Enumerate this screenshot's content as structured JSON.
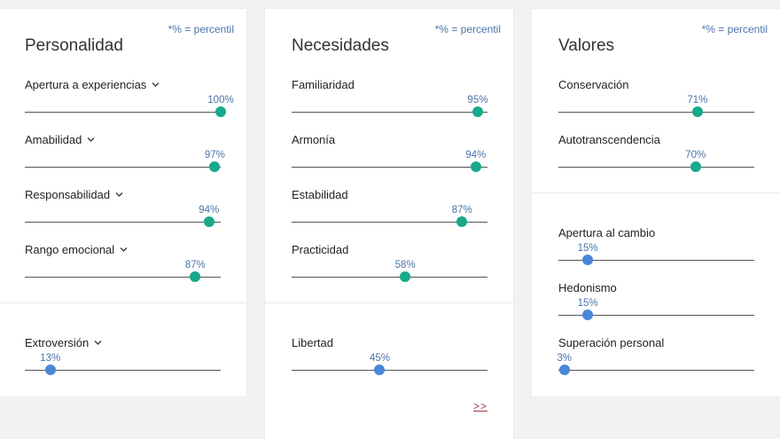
{
  "note": "*% = percentil",
  "colors": {
    "high": "#17a98b",
    "low": "#4a86d8",
    "value_text": "#4a73a8"
  },
  "cards": [
    {
      "title": "Personalidad",
      "note": "*% = percentil",
      "top_traits": [
        {
          "name": "Apertura a experiencias",
          "percent": 100,
          "label": "100%",
          "expandable": true
        },
        {
          "name": "Amabilidad",
          "percent": 97,
          "label": "97%",
          "expandable": true
        },
        {
          "name": "Responsabilidad",
          "percent": 94,
          "label": "94%",
          "expandable": true
        },
        {
          "name": "Rango emocional",
          "percent": 87,
          "label": "87%",
          "expandable": true
        }
      ],
      "bottom_traits": [
        {
          "name": "Extroversión",
          "percent": 13,
          "label": "13%",
          "expandable": true
        }
      ]
    },
    {
      "title": "Necesidades",
      "note": "*% = percentil",
      "top_traits": [
        {
          "name": "Familiaridad",
          "percent": 95,
          "label": "95%",
          "expandable": false
        },
        {
          "name": "Armonía",
          "percent": 94,
          "label": "94%",
          "expandable": false
        },
        {
          "name": "Estabilidad",
          "percent": 87,
          "label": "87%",
          "expandable": false
        },
        {
          "name": "Practicidad",
          "percent": 58,
          "label": "58%",
          "expandable": false
        }
      ],
      "bottom_traits": [
        {
          "name": "Libertad",
          "percent": 45,
          "label": "45%",
          "expandable": false
        }
      ],
      "more_link": ">>"
    },
    {
      "title": "Valores",
      "note": "*% = percentil",
      "top_traits": [
        {
          "name": "Conservación",
          "percent": 71,
          "label": "71%",
          "expandable": false
        },
        {
          "name": "Autotranscendencia",
          "percent": 70,
          "label": "70%",
          "expandable": false
        }
      ],
      "bottom_traits": [
        {
          "name": "Apertura al cambio",
          "percent": 15,
          "label": "15%",
          "expandable": false
        },
        {
          "name": "Hedonismo",
          "percent": 15,
          "label": "15%",
          "expandable": false
        },
        {
          "name": "Superación personal",
          "percent": 3,
          "label": "3%",
          "expandable": false
        }
      ]
    }
  ]
}
